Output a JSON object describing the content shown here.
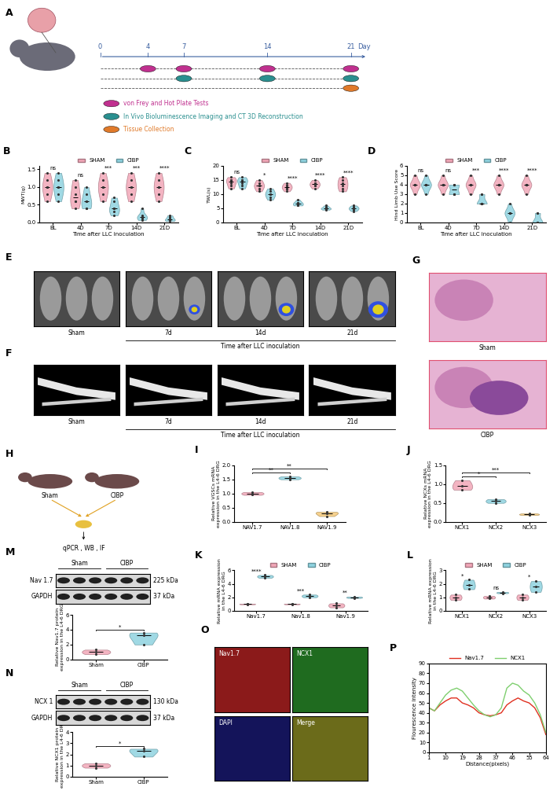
{
  "chart_data": [
    {
      "panel": "B",
      "type": "violin",
      "categories": [
        "BL",
        "4D",
        "7D",
        "14D",
        "21D"
      ],
      "x_label": "Time after LLC inoculation",
      "y_label": "MWT(g)",
      "ylim": [
        0,
        1.6
      ],
      "yticks": [
        {
          "value": 0,
          "label": "0.0"
        },
        {
          "value": 0.5,
          "label": "0.5"
        },
        {
          "value": 1,
          "label": "1.0"
        },
        {
          "value": 1.5,
          "label": "1.5"
        }
      ],
      "legend": "upper center",
      "series": [
        {
          "name": "SHAM",
          "color": "#f2a7b8",
          "values": [
            [
              1.0,
              1.2,
              0.8,
              1.0,
              0.6,
              1.4
            ],
            [
              0.6,
              1.0,
              0.4,
              0.8,
              1.2,
              0.6
            ],
            [
              1.0,
              0.8,
              1.2,
              1.0,
              0.6,
              1.4
            ],
            [
              1.0,
              0.8,
              1.2,
              1.0,
              0.6,
              1.4
            ],
            [
              1.0,
              1.2,
              0.8,
              1.0,
              0.6,
              1.4
            ]
          ]
        },
        {
          "name": "CIBP",
          "color": "#8fd3e0",
          "values": [
            [
              1.0,
              0.8,
              1.2,
              0.6,
              1.0,
              1.4
            ],
            [
              0.6,
              0.4,
              0.8,
              0.6,
              1.0,
              0.4
            ],
            [
              0.4,
              0.2,
              0.6,
              0.4,
              0.3,
              0.7
            ],
            [
              0.16,
              0.1,
              0.2,
              0.07,
              0.4,
              0.16
            ],
            [
              0.07,
              0.04,
              0.1,
              0.16,
              0.07,
              0.2
            ]
          ]
        }
      ],
      "significance": [
        "ns",
        "ns",
        "***",
        "***",
        "****"
      ]
    },
    {
      "panel": "C",
      "type": "violin",
      "categories": [
        "BL",
        "4D",
        "7D",
        "14D",
        "21D"
      ],
      "x_label": "Time after LLC inoculation",
      "y_label": "TWL(s)",
      "ylim": [
        0,
        20
      ],
      "yticks": [
        0,
        5,
        10,
        15,
        20
      ],
      "legend": "upper center",
      "series": [
        {
          "name": "SHAM",
          "color": "#f2a7b8",
          "values": [
            [
              14,
              15,
              13,
              16,
              12,
              15
            ],
            [
              13,
              14,
              12,
              11,
              15,
              13
            ],
            [
              12,
              13,
              11,
              14,
              12,
              13
            ],
            [
              13,
              14,
              12,
              15,
              13,
              14
            ],
            [
              13,
              14,
              12,
              16,
              11,
              15
            ]
          ]
        },
        {
          "name": "CIBP",
          "color": "#8fd3e0",
          "values": [
            [
              14,
              15,
              12,
              16,
              13,
              15
            ],
            [
              10,
              11,
              8,
              12,
              9,
              10
            ],
            [
              7,
              6.5,
              6,
              8,
              7,
              6
            ],
            [
              5,
              5.5,
              4.5,
              5,
              6,
              4.8
            ],
            [
              5,
              4,
              6,
              5,
              4.5,
              5.5
            ]
          ]
        }
      ],
      "significance": [
        "ns",
        "*",
        "****",
        "****",
        "****"
      ]
    },
    {
      "panel": "D",
      "type": "violin",
      "categories": [
        "BL",
        "4D",
        "7D",
        "14D",
        "21D"
      ],
      "x_label": "Time after LLC inoculation",
      "y_label": "Hind Limb Use Score",
      "ylim": [
        0,
        6
      ],
      "yticks": [
        0,
        1,
        2,
        3,
        4,
        5,
        6
      ],
      "legend": "upper center",
      "series": [
        {
          "name": "SHAM",
          "color": "#f2a7b8",
          "values": [
            [
              4,
              4,
              3,
              4,
              5,
              4
            ],
            [
              4,
              4,
              3,
              4,
              4,
              5
            ],
            [
              4,
              3,
              4,
              4,
              5,
              4
            ],
            [
              4,
              4,
              3,
              4,
              5,
              4
            ],
            [
              4,
              4,
              3,
              4,
              4,
              5
            ]
          ]
        },
        {
          "name": "CIBP",
          "color": "#8fd3e0",
          "values": [
            [
              4,
              4,
              3,
              4,
              5,
              4
            ],
            [
              3,
              4,
              3,
              4,
              3,
              4
            ],
            [
              2,
              3,
              2,
              2,
              3,
              2
            ],
            [
              1,
              1,
              2,
              1,
              1,
              0
            ],
            [
              0,
              0,
              1,
              0,
              0,
              1
            ]
          ]
        }
      ],
      "significance": [
        "ns",
        "ns",
        "***",
        "****",
        "****"
      ]
    },
    {
      "panel": "I",
      "type": "violin",
      "categories": [
        "NAV1.7",
        "NAV1.8",
        "NAV1.9"
      ],
      "y_label": "Relative VGSCs mRNA\nexpression in the L4-6 DRG",
      "ylim": [
        0,
        2
      ],
      "yticks": [
        {
          "value": 0,
          "label": "0.0"
        },
        {
          "value": 0.5,
          "label": "0.5"
        },
        {
          "value": 1,
          "label": "1.0"
        },
        {
          "value": 1.5,
          "label": "1.5"
        },
        {
          "value": 2,
          "label": "2.0"
        }
      ],
      "colors": [
        "#f2a7b8",
        "#8fd3e0",
        "#f5c97a"
      ],
      "values": [
        [
          0.95,
          1.0,
          1.05
        ],
        [
          1.5,
          1.6,
          1.55
        ],
        [
          0.2,
          0.35,
          0.3
        ]
      ],
      "comparisons": [
        {
          "pair": [
            "NAV1.7",
            "NAV1.8"
          ],
          "label": "**"
        },
        {
          "pair": [
            "NAV1.7",
            "NAV1.9"
          ],
          "label": "**"
        }
      ]
    },
    {
      "panel": "J",
      "type": "violin",
      "categories": [
        "NCX1",
        "NCX2",
        "NCX3"
      ],
      "y_label": "Relative NCXs mRNA\nexpression in the L4-6 DRG",
      "ylim": [
        0,
        1.5
      ],
      "yticks": [
        {
          "value": 0,
          "label": "0.0"
        },
        {
          "value": 0.5,
          "label": "0.5"
        },
        {
          "value": 1,
          "label": "1.0"
        },
        {
          "value": 1.5,
          "label": "1.5"
        }
      ],
      "colors": [
        "#f2a7b8",
        "#8fd3e0",
        "#f5c97a"
      ],
      "values": [
        [
          0.85,
          0.95,
          1.1
        ],
        [
          0.5,
          0.6,
          0.55
        ],
        [
          0.18,
          0.2,
          0.22
        ]
      ],
      "comparisons": [
        {
          "pair": [
            "NCX1",
            "NCX2"
          ],
          "label": "*"
        },
        {
          "pair": [
            "NCX1",
            "NCX3"
          ],
          "label": "***"
        }
      ]
    },
    {
      "panel": "K",
      "type": "violin",
      "categories": [
        "Nav1.7",
        "Nav1.8",
        "Nav1.9"
      ],
      "y_label": "Relative mRNA expression\nin the L4-6 DRG",
      "ylim": [
        0,
        6
      ],
      "yticks": [
        0,
        2,
        4,
        6
      ],
      "legend": "upper center",
      "series": [
        {
          "name": "SHAM",
          "color": "#f2a7b8",
          "values": [
            [
              0.95,
              1.0,
              1.05
            ],
            [
              0.95,
              1.0,
              1.05
            ],
            [
              0.5,
              0.8,
              1.1
            ]
          ]
        },
        {
          "name": "CIBP",
          "color": "#8fd3e0",
          "values": [
            [
              4.9,
              5.1,
              5.3
            ],
            [
              2.0,
              2.2,
              2.4
            ],
            [
              1.9,
              2.0,
              2.1
            ]
          ]
        }
      ],
      "significance": [
        "****",
        "***",
        "**"
      ]
    },
    {
      "panel": "L",
      "type": "violin",
      "categories": [
        "NCX1",
        "NCX2",
        "NCX3"
      ],
      "y_label": "Relative mRNA expression\nin the L4-6 DRG",
      "ylim": [
        0,
        3
      ],
      "yticks": [
        0,
        1,
        2,
        3
      ],
      "legend": "upper center",
      "series": [
        {
          "name": "SHAM",
          "color": "#f2a7b8",
          "values": [
            [
              0.8,
              1.0,
              1.2
            ],
            [
              0.9,
              1.0,
              1.1
            ],
            [
              0.8,
              1.0,
              1.2
            ]
          ]
        },
        {
          "name": "CIBP",
          "color": "#8fd3e0",
          "values": [
            [
              1.6,
              1.9,
              2.3
            ],
            [
              1.3,
              1.35,
              1.4
            ],
            [
              1.4,
              1.8,
              2.2
            ]
          ]
        }
      ],
      "significance": [
        "*",
        "ns",
        "*"
      ]
    },
    {
      "type": "violin",
      "categories": [
        "Sham",
        "CIBP"
      ],
      "y_label": "Relative Nav1.7 protein\nexpression in the L4-6 DRG",
      "ylim": [
        0,
        6
      ],
      "yticks": [
        0,
        2,
        4,
        6
      ],
      "colors": [
        "#f2a7b8",
        "#8fd3e0"
      ],
      "values": [
        [
          0.7,
          1.0,
          1.3
        ],
        [
          2.0,
          3.2,
          3.6
        ]
      ],
      "comparisons": [
        {
          "pair": [
            "Sham",
            "CIBP"
          ],
          "label": "*"
        }
      ]
    },
    {
      "type": "violin",
      "categories": [
        "Sham",
        "CIBP"
      ],
      "y_label": "Relative NCX1 protein\nexpression in the L4-6 DRG",
      "ylim": [
        0,
        4
      ],
      "yticks": [
        0,
        1,
        2,
        3,
        4
      ],
      "colors": [
        "#f2a7b8",
        "#8fd3e0"
      ],
      "values": [
        [
          0.8,
          1.0,
          1.2
        ],
        [
          1.8,
          2.3,
          2.5
        ]
      ],
      "comparisons": [
        {
          "pair": [
            "Sham",
            "CIBP"
          ],
          "label": "*"
        }
      ]
    },
    {
      "panel": "P",
      "type": "line",
      "x_label": "Distance(pixels)",
      "y_label": "Flourescence intensity",
      "x": [
        1,
        4,
        7,
        10,
        13,
        16,
        19,
        22,
        25,
        28,
        31,
        34,
        37,
        40,
        43,
        46,
        49,
        52,
        55,
        58,
        61,
        64
      ],
      "xlim": [
        1,
        64
      ],
      "xticks": [
        1,
        10,
        19,
        28,
        37,
        46,
        55,
        64
      ],
      "ylim": [
        0,
        90
      ],
      "yticks": [
        0,
        10,
        20,
        30,
        40,
        50,
        60,
        70,
        80,
        90
      ],
      "legend": "upper center",
      "series": [
        {
          "name": "Nav1.7",
          "color": "#e03020",
          "values": [
            45,
            42,
            48,
            52,
            55,
            55,
            50,
            48,
            45,
            40,
            38,
            37,
            38,
            40,
            48,
            52,
            55,
            52,
            50,
            45,
            35,
            18
          ]
        },
        {
          "name": "NCX1",
          "color": "#7fcf6f",
          "values": [
            45,
            42,
            50,
            58,
            63,
            65,
            62,
            55,
            48,
            42,
            38,
            36,
            38,
            45,
            65,
            70,
            68,
            62,
            58,
            50,
            38,
            20
          ]
        }
      ]
    }
  ],
  "diagrams": {
    "A": {
      "panel": "A",
      "days": [
        0,
        4,
        7,
        14,
        21
      ],
      "day_unit": "Day",
      "rows": [
        {
          "label": "von Frey and Hot Plate Tests",
          "color": "#c0308f",
          "days": [
            4,
            7,
            14,
            21
          ]
        },
        {
          "label": "In Vivo Bioluminescence Imaging and CT 3D Reconstruction",
          "color": "#2a8f8f",
          "days": [
            7,
            14,
            21
          ]
        },
        {
          "label": "Tissue Collection",
          "color": "#e07a2a",
          "days": [
            21
          ]
        }
      ]
    },
    "E": {
      "panel": "E",
      "images": [
        "Sham",
        "7d",
        "14d",
        "21d"
      ],
      "group_label": "Time after LLC inoculation"
    },
    "F": {
      "panel": "F",
      "images": [
        "Sham",
        "7d",
        "14d",
        "21d"
      ],
      "group_label": "Time after LLC inoculation"
    },
    "G": {
      "panel": "G",
      "images": [
        "Sham",
        "CIBP"
      ]
    },
    "H": {
      "panel": "H",
      "groups": [
        "Sham",
        "CIBP"
      ],
      "methods": "qPCR , WB , IF"
    },
    "M": {
      "panel": "M",
      "groups": [
        "Sham",
        "CIBP"
      ],
      "bands": [
        {
          "name": "Nav 1.7",
          "size": "225 kDa"
        },
        {
          "name": "GAPDH",
          "size": "37 kDa"
        }
      ]
    },
    "N": {
      "panel": "N",
      "groups": [
        "Sham",
        "CIBP"
      ],
      "bands": [
        {
          "name": "NCX 1",
          "size": "130 kDa"
        },
        {
          "name": "GAPDH",
          "size": "37 kDa"
        }
      ]
    },
    "O": {
      "panel": "O",
      "images": [
        "Nav1.7",
        "NCX1",
        "DAPI",
        "Merge"
      ]
    }
  }
}
